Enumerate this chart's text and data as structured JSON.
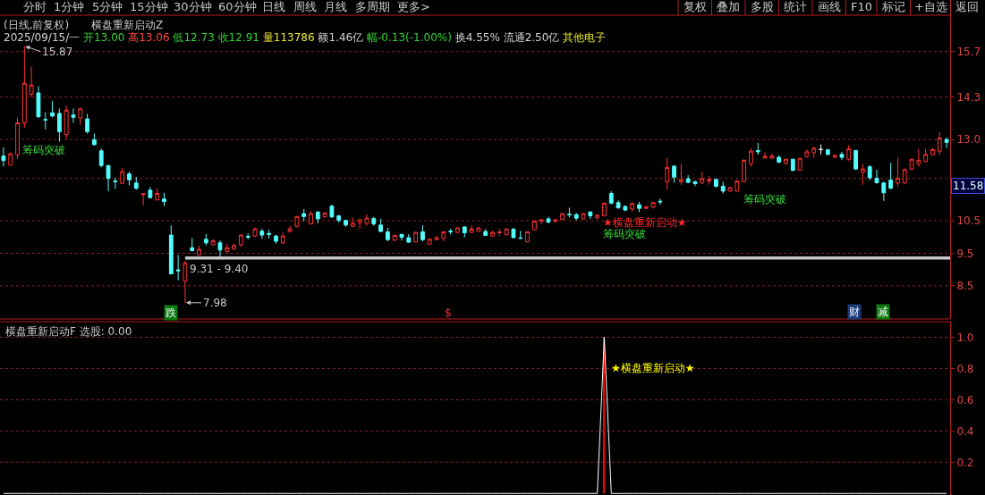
{
  "chart_data": [
    {
      "type": "other",
      "annotations": [
        "分时",
        "1分钟",
        "5分钟",
        "15分钟",
        "30分钟",
        "60分钟",
        "日线",
        "周线",
        "月线",
        "多周期",
        "更多>",
        "复权",
        "叠加",
        "多股",
        "统计",
        "画线",
        "F10",
        "标记",
        "+自选",
        "返回"
      ]
    },
    {
      "type": "candlestick",
      "title": "(日线,前复权)",
      "subtitle": "2025/09/15/一 开13.00 高13.06 低12.73 收12.91 量113786 额1.46亿 幅-0.13(-1.00%) 换4.55% 流通2.50亿 其他电子",
      "categories": [
        null,
        null,
        null,
        null,
        null,
        null,
        null,
        null,
        null,
        null,
        null,
        null,
        null,
        null,
        null,
        null,
        null,
        null,
        null,
        null,
        null,
        null,
        null,
        null,
        null,
        null,
        null,
        null,
        null,
        null,
        null,
        null,
        null,
        null,
        null,
        null,
        null,
        null,
        null,
        null,
        null,
        null,
        null,
        null,
        null,
        null,
        null,
        null,
        null,
        null,
        null,
        null,
        null,
        null,
        null,
        null,
        null,
        null,
        null,
        null,
        null,
        null,
        null,
        null,
        null,
        null,
        null,
        null,
        null,
        null,
        null,
        null,
        null,
        null,
        null,
        null,
        null,
        null,
        null,
        null,
        null,
        null,
        null,
        null,
        null,
        null,
        null,
        null,
        null,
        null,
        null,
        null,
        null,
        null,
        null,
        null,
        null,
        null,
        null,
        null,
        null,
        null,
        null,
        null,
        null,
        null,
        null,
        null,
        null,
        null,
        null,
        null,
        null,
        null,
        null,
        null,
        null,
        null,
        null,
        null,
        null,
        null,
        null,
        null,
        null,
        null,
        null,
        null,
        null,
        null,
        null,
        null,
        null,
        null,
        null,
        null
      ],
      "ohlc": [
        [
          12.49,
          12.76,
          12.17,
          12.35
        ],
        [
          12.21,
          12.6,
          12.2,
          12.56
        ],
        [
          12.53,
          13.66,
          12.4,
          13.51
        ],
        [
          13.51,
          15.87,
          13.36,
          14.73
        ],
        [
          14.39,
          15.24,
          14.3,
          14.67
        ],
        [
          14.43,
          14.64,
          13.66,
          13.7
        ],
        [
          13.61,
          13.84,
          13.31,
          13.6
        ],
        [
          13.82,
          14.18,
          13.68,
          13.72
        ],
        [
          13.8,
          13.95,
          12.93,
          13.24
        ],
        [
          13.15,
          14.03,
          13.02,
          13.9
        ],
        [
          13.75,
          13.95,
          13.51,
          13.68
        ],
        [
          13.66,
          13.97,
          13.45,
          13.94
        ],
        [
          13.63,
          13.79,
          13.18,
          13.24
        ],
        [
          12.99,
          13.18,
          12.81,
          12.84
        ],
        [
          12.65,
          12.72,
          12.14,
          12.2
        ],
        [
          12.2,
          12.21,
          11.41,
          11.8
        ],
        [
          11.72,
          11.83,
          11.48,
          11.7
        ],
        [
          11.65,
          12.12,
          11.62,
          12.01
        ],
        [
          11.94,
          12.01,
          11.59,
          11.76
        ],
        [
          11.66,
          11.85,
          11.45,
          11.5
        ],
        [
          11.3,
          11.34,
          10.98,
          11.33
        ],
        [
          11.44,
          11.53,
          11.19,
          11.21
        ],
        [
          11.14,
          11.5,
          11.13,
          11.34
        ],
        [
          11.17,
          11.36,
          10.95,
          11.09
        ],
        [
          10.06,
          10.36,
          8.85,
          8.87
        ],
        [
          8.99,
          9.45,
          8.67,
          8.96
        ],
        [
          8.64,
          9.27,
          7.98,
          9.19
        ],
        [
          9.67,
          9.97,
          9.56,
          9.58
        ],
        [
          9.45,
          9.74,
          9.44,
          9.62
        ],
        [
          9.93,
          10.09,
          9.74,
          9.82
        ],
        [
          9.76,
          9.93,
          9.74,
          9.88
        ],
        [
          9.82,
          9.9,
          9.39,
          9.6
        ],
        [
          9.56,
          9.79,
          9.53,
          9.67
        ],
        [
          9.63,
          9.79,
          9.6,
          9.74
        ],
        [
          9.76,
          10.09,
          9.7,
          10.06
        ],
        [
          10.02,
          10.11,
          9.93,
          10.0
        ],
        [
          10.03,
          10.29,
          10.0,
          10.25
        ],
        [
          10.18,
          10.25,
          9.94,
          10.06
        ],
        [
          10.11,
          10.22,
          9.96,
          10.08
        ],
        [
          10.03,
          10.07,
          9.8,
          9.87
        ],
        [
          9.82,
          10.14,
          9.78,
          10.03
        ],
        [
          10.17,
          10.35,
          10.13,
          10.25
        ],
        [
          10.33,
          10.65,
          10.31,
          10.63
        ],
        [
          10.72,
          10.86,
          10.48,
          10.63
        ],
        [
          10.4,
          10.79,
          10.39,
          10.72
        ],
        [
          10.77,
          10.8,
          10.42,
          10.56
        ],
        [
          10.62,
          10.76,
          10.6,
          10.74
        ],
        [
          10.95,
          10.99,
          10.58,
          10.62
        ],
        [
          10.65,
          10.68,
          10.45,
          10.51
        ],
        [
          10.51,
          10.53,
          10.31,
          10.37
        ],
        [
          10.33,
          10.6,
          10.31,
          10.42
        ],
        [
          10.44,
          10.55,
          10.25,
          10.53
        ],
        [
          10.42,
          10.69,
          10.35,
          10.58
        ],
        [
          10.57,
          10.62,
          10.35,
          10.4
        ],
        [
          10.37,
          10.56,
          10.16,
          10.17
        ],
        [
          10.16,
          10.28,
          9.87,
          9.92
        ],
        [
          9.9,
          10.07,
          9.89,
          10.05
        ],
        [
          10.08,
          10.1,
          9.89,
          9.99
        ],
        [
          9.98,
          10.09,
          9.82,
          9.84
        ],
        [
          9.85,
          10.16,
          9.84,
          10.14
        ],
        [
          10.16,
          10.36,
          9.87,
          9.92
        ],
        [
          9.78,
          9.96,
          9.76,
          9.93
        ],
        [
          9.92,
          10.03,
          9.9,
          9.98
        ],
        [
          9.96,
          10.18,
          9.87,
          10.16
        ],
        [
          10.18,
          10.25,
          10.08,
          10.16
        ],
        [
          10.14,
          10.3,
          10.13,
          10.28
        ],
        [
          10.31,
          10.33,
          9.99,
          10.13
        ],
        [
          10.14,
          10.35,
          10.13,
          10.24
        ],
        [
          10.17,
          10.3,
          10.16,
          10.28
        ],
        [
          10.17,
          10.24,
          10.03,
          10.05
        ],
        [
          10.03,
          10.19,
          10.01,
          10.14
        ],
        [
          10.13,
          10.25,
          10.03,
          10.15
        ],
        [
          10.07,
          10.26,
          10.05,
          10.25
        ],
        [
          10.24,
          10.28,
          9.96,
          9.98
        ],
        [
          9.97,
          10.19,
          9.95,
          9.96
        ],
        [
          9.85,
          10.18,
          9.84,
          10.16
        ],
        [
          10.22,
          10.51,
          10.21,
          10.49
        ],
        [
          10.49,
          10.53,
          10.4,
          10.53
        ],
        [
          10.56,
          10.62,
          10.42,
          10.46
        ],
        [
          10.49,
          10.53,
          10.42,
          10.53
        ],
        [
          10.54,
          10.74,
          10.53,
          10.72
        ],
        [
          10.7,
          10.9,
          10.6,
          10.68
        ],
        [
          10.69,
          10.74,
          10.51,
          10.58
        ],
        [
          10.56,
          10.73,
          10.55,
          10.72
        ],
        [
          10.77,
          10.79,
          10.56,
          10.65
        ],
        [
          10.59,
          10.7,
          10.55,
          10.67
        ],
        [
          10.65,
          11.06,
          10.63,
          11.04
        ],
        [
          11.34,
          11.41,
          11.01,
          11.04
        ],
        [
          11.06,
          11.13,
          10.86,
          10.9
        ],
        [
          10.94,
          10.97,
          10.79,
          10.83
        ],
        [
          10.86,
          11.06,
          10.79,
          11.03
        ],
        [
          10.99,
          11.08,
          10.77,
          10.88
        ],
        [
          10.88,
          10.97,
          10.86,
          10.92
        ],
        [
          10.92,
          11.08,
          10.88,
          11.06
        ],
        [
          11.1,
          11.18,
          11.0,
          11.08
        ],
        [
          11.7,
          12.43,
          11.47,
          12.14
        ],
        [
          12.18,
          12.21,
          11.67,
          11.84
        ],
        [
          11.7,
          12.25,
          11.61,
          11.76
        ],
        [
          11.79,
          11.9,
          11.66,
          11.68
        ],
        [
          11.7,
          11.73,
          11.56,
          11.64
        ],
        [
          11.66,
          12.0,
          11.64,
          11.79
        ],
        [
          11.72,
          11.88,
          11.61,
          11.77
        ],
        [
          11.77,
          11.79,
          11.52,
          11.56
        ],
        [
          11.56,
          11.7,
          11.34,
          11.41
        ],
        [
          11.41,
          11.53,
          11.4,
          11.52
        ],
        [
          11.41,
          11.75,
          11.4,
          11.72
        ],
        [
          11.7,
          12.39,
          11.68,
          12.36
        ],
        [
          12.25,
          12.73,
          12.16,
          12.64
        ],
        [
          12.66,
          12.89,
          12.53,
          12.62
        ],
        [
          12.43,
          12.6,
          12.42,
          12.48
        ],
        [
          12.42,
          12.57,
          12.41,
          12.5
        ],
        [
          12.45,
          12.51,
          12.27,
          12.3
        ],
        [
          12.27,
          12.41,
          12.21,
          12.39
        ],
        [
          12.39,
          12.41,
          12.02,
          12.05
        ],
        [
          12.05,
          12.43,
          12.04,
          12.42
        ],
        [
          12.48,
          12.69,
          12.43,
          12.62
        ],
        [
          12.59,
          12.78,
          12.43,
          12.73
        ],
        [
          12.69,
          12.85,
          12.54,
          12.69
        ],
        [
          12.68,
          12.71,
          12.51,
          12.54
        ],
        [
          12.46,
          12.54,
          12.41,
          12.51
        ],
        [
          12.54,
          12.62,
          12.36,
          12.45
        ],
        [
          12.39,
          12.83,
          12.34,
          12.71
        ],
        [
          12.66,
          12.68,
          12.07,
          12.09
        ],
        [
          11.99,
          12.25,
          11.61,
          12.09
        ],
        [
          12.16,
          12.21,
          11.75,
          11.82
        ],
        [
          11.81,
          12.07,
          11.64,
          11.67
        ],
        [
          11.66,
          11.7,
          11.11,
          11.36
        ],
        [
          11.75,
          12.28,
          11.47,
          11.5
        ],
        [
          11.66,
          12.43,
          11.56,
          11.81
        ],
        [
          11.66,
          12.11,
          11.64,
          12.07
        ],
        [
          12.09,
          12.41,
          12.05,
          12.39
        ],
        [
          12.25,
          12.71,
          12.16,
          12.36
        ],
        [
          12.32,
          12.71,
          12.31,
          12.54
        ],
        [
          12.53,
          12.73,
          12.51,
          12.69
        ],
        [
          12.64,
          13.23,
          12.53,
          13.04
        ],
        [
          13.0,
          13.06,
          12.73,
          12.91
        ]
      ],
      "colors": [
        "#54fcfc",
        "#ff3232",
        "#ff3232",
        "#ff3232",
        "#ff3232",
        "#54fcfc",
        "#54fcfc",
        "#54fcfc",
        "#54fcfc",
        "#ff3232",
        "#54fcfc",
        "#ff3232",
        "#54fcfc",
        "#54fcfc",
        "#54fcfc",
        "#54fcfc",
        "#54fcfc",
        "#ff3232",
        "#54fcfc",
        "#54fcfc",
        "#ff3232",
        "#54fcfc",
        "#ff3232",
        "#54fcfc",
        "#54fcfc",
        "#54fcfc",
        "#ff3232",
        "#54fcfc",
        "#ff3232",
        "#54fcfc",
        "#ff3232",
        "#54fcfc",
        "#ff3232",
        "#ff3232",
        "#ff3232",
        "#54fcfc",
        "#ff3232",
        "#54fcfc",
        "#54fcfc",
        "#54fcfc",
        "#ff3232",
        "#ff3232",
        "#ff3232",
        "#54fcfc",
        "#ff3232",
        "#54fcfc",
        "#ff3232",
        "#54fcfc",
        "#54fcfc",
        "#54fcfc",
        "#ff3232",
        "#ff3232",
        "#ff3232",
        "#54fcfc",
        "#54fcfc",
        "#54fcfc",
        "#ff3232",
        "#54fcfc",
        "#54fcfc",
        "#ff3232",
        "#54fcfc",
        "#ff3232",
        "#ff3232",
        "#ff3232",
        "#54fcfc",
        "#ff3232",
        "#54fcfc",
        "#ff3232",
        "#ff3232",
        "#54fcfc",
        "#ff3232",
        "#ff3232",
        "#ff3232",
        "#54fcfc",
        "#54fcfc",
        "#ff3232",
        "#ff3232",
        "#ff3232",
        "#54fcfc",
        "#ff3232",
        "#ff3232",
        "#54fcfc",
        "#54fcfc",
        "#ff3232",
        "#54fcfc",
        "#ff3232",
        "#ff3232",
        "#54fcfc",
        "#54fcfc",
        "#54fcfc",
        "#ff3232",
        "#54fcfc",
        "#ff3232",
        "#ff3232",
        "#54fcfc",
        "#ff3232",
        "#54fcfc",
        "#ff3232",
        "#54fcfc",
        "#54fcfc",
        "#ff3232",
        "#ff3232",
        "#54fcfc",
        "#54fcfc",
        "#ff3232",
        "#ff3232",
        "#ff3232",
        "#ff3232",
        "#54fcfc",
        "#ff3232",
        "#ff3232",
        "#54fcfc",
        "#ff3232",
        "#54fcfc",
        "#ff3232",
        "#ff3232",
        "#ff3232",
        "#ffffff",
        "#54fcfc",
        "#ff3232",
        "#54fcfc",
        "#ff3232",
        "#54fcfc",
        "#ff3232",
        "#54fcfc",
        "#54fcfc",
        "#54fcfc",
        "#54fcfc",
        "#ff3232",
        "#ff3232",
        "#ff3232",
        "#ff3232",
        "#ff3232",
        "#ff3232",
        "#ff3232",
        "#54fcfc"
      ],
      "ylim": [
        7.48,
        16.82
      ],
      "yticks": [
        15.7,
        14.3,
        {
          "value": 13,
          "label": "13.0"
        },
        {
          "value": 11.8,
          "label": null
        },
        10.5,
        9.5,
        8.5
      ],
      "grid": "y",
      "tick_labels": "y",
      "bands": [
        {
          "axis": "y",
          "from": 9.31,
          "to": 9.4,
          "label": "9.31 - 9.40",
          "color": "#c8c8c8"
        }
      ],
      "annotations": [
        "横盘重新启动Z",
        "15.87",
        "7.98",
        {
          "text": "11.58",
          "y": 11.58
        },
        "筹码突破",
        "★横盘重新启动★",
        "筹码突破",
        "筹码突破",
        "跌",
        "$",
        "财",
        "减"
      ]
    },
    {
      "type": "line",
      "title": "横盘重新启动F 选股: 0.00",
      "categories": [
        null,
        null,
        null,
        null,
        null,
        null,
        null,
        null,
        null,
        null,
        null,
        null,
        null,
        null,
        null,
        null,
        null,
        null,
        null,
        null,
        null,
        null,
        null,
        null,
        null,
        null,
        null,
        null,
        null,
        null,
        null,
        null,
        null,
        null,
        null,
        null,
        null,
        null,
        null,
        null,
        null,
        null,
        null,
        null,
        null,
        null,
        null,
        null,
        null,
        null,
        null,
        null,
        null,
        null,
        null,
        null,
        null,
        null,
        null,
        null,
        null,
        null,
        null,
        null,
        null,
        null,
        null,
        null,
        null,
        null,
        null,
        null,
        null,
        null,
        null,
        null,
        null,
        null,
        null,
        null,
        null,
        null,
        null,
        null,
        null,
        null,
        null,
        null,
        null,
        null,
        null,
        null,
        null,
        null,
        null,
        null,
        null,
        null,
        null,
        null,
        null,
        null,
        null,
        null,
        null,
        null,
        null,
        null,
        null,
        null,
        null,
        null,
        null,
        null,
        null,
        null,
        null,
        null,
        null,
        null,
        null,
        null,
        null,
        null,
        null,
        null,
        null,
        null,
        null,
        null,
        null,
        null,
        null,
        null,
        null,
        null
      ],
      "series": [
        {
          "type": "line",
          "color": "#ffffff",
          "values": [
            0,
            0,
            0,
            0,
            0,
            0,
            0,
            0,
            0,
            0,
            0,
            0,
            0,
            0,
            0,
            0,
            0,
            0,
            0,
            0,
            0,
            0,
            0,
            0,
            0,
            0,
            0,
            0,
            0,
            0,
            0,
            0,
            0,
            0,
            0,
            0,
            0,
            0,
            0,
            0,
            0,
            0,
            0,
            0,
            0,
            0,
            0,
            0,
            0,
            0,
            0,
            0,
            0,
            0,
            0,
            0,
            0,
            0,
            0,
            0,
            0,
            0,
            0,
            0,
            0,
            0,
            0,
            0,
            0,
            0,
            0,
            0,
            0,
            0,
            0,
            0,
            0,
            0,
            0,
            0,
            0,
            0,
            0,
            0,
            0,
            0,
            1,
            0,
            0,
            0,
            0,
            0,
            0,
            0,
            0,
            0,
            0,
            0,
            0,
            0,
            0,
            0,
            0,
            0,
            0,
            0,
            0,
            0,
            0,
            0,
            0,
            0,
            0,
            0,
            0,
            0,
            0,
            0,
            0,
            0,
            0,
            0,
            0,
            0,
            0,
            0,
            0,
            0,
            0,
            0,
            0,
            0,
            0,
            0,
            0,
            0
          ]
        },
        {
          "type": "bar",
          "color": "#ff0000",
          "values": [
            null,
            null,
            null,
            null,
            null,
            null,
            null,
            null,
            null,
            null,
            null,
            null,
            null,
            null,
            null,
            null,
            null,
            null,
            null,
            null,
            null,
            null,
            null,
            null,
            null,
            null,
            null,
            null,
            null,
            null,
            null,
            null,
            null,
            null,
            null,
            null,
            null,
            null,
            null,
            null,
            null,
            null,
            null,
            null,
            null,
            null,
            null,
            null,
            null,
            null,
            null,
            null,
            null,
            null,
            null,
            null,
            null,
            null,
            null,
            null,
            null,
            null,
            null,
            null,
            null,
            null,
            null,
            null,
            null,
            null,
            null,
            null,
            null,
            null,
            null,
            null,
            null,
            null,
            null,
            null,
            null,
            null,
            null,
            null,
            null,
            null,
            1,
            null,
            null,
            null,
            null,
            null,
            null,
            null,
            null,
            null,
            null,
            null,
            null,
            null,
            null,
            null,
            null,
            null,
            null,
            null,
            null,
            null,
            null,
            null,
            null,
            null,
            null,
            null,
            null,
            null,
            null,
            null,
            null,
            null,
            null,
            null,
            null,
            null,
            null,
            null,
            null,
            null,
            null,
            null,
            null,
            null,
            null,
            null,
            null,
            null
          ]
        }
      ],
      "ylim": [
        -0.01,
        1.1
      ],
      "yticks": [
        0.2,
        0.4,
        0.6,
        0.8,
        {
          "value": 1,
          "label": "1.0"
        }
      ],
      "grid": "y",
      "tick_labels": "y",
      "annotations": [
        "★横盘重新启动★"
      ]
    }
  ]
}
